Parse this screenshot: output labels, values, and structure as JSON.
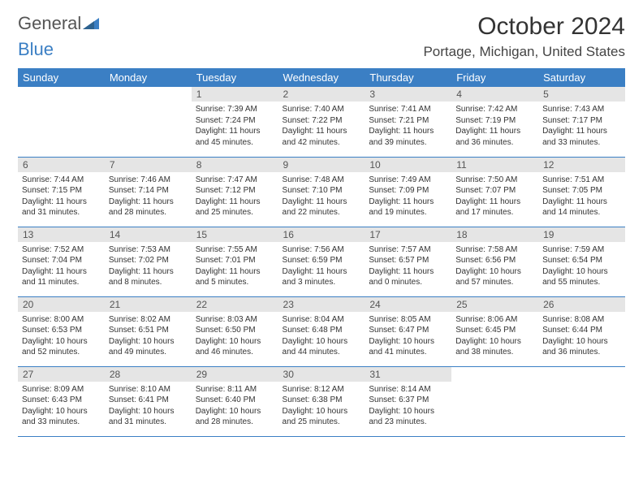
{
  "logo": {
    "text_general": "General",
    "text_blue": "Blue",
    "triangle_color": "#3b7fc4"
  },
  "title": "October 2024",
  "location": "Portage, Michigan, United States",
  "colors": {
    "header_bg": "#3b7fc4",
    "day_num_bg": "#e5e5e5",
    "border": "#3b7fc4"
  },
  "weekdays": [
    "Sunday",
    "Monday",
    "Tuesday",
    "Wednesday",
    "Thursday",
    "Friday",
    "Saturday"
  ],
  "weeks": [
    [
      null,
      null,
      {
        "num": "1",
        "sunrise": "7:39 AM",
        "sunset": "7:24 PM",
        "daylight": "11 hours and 45 minutes."
      },
      {
        "num": "2",
        "sunrise": "7:40 AM",
        "sunset": "7:22 PM",
        "daylight": "11 hours and 42 minutes."
      },
      {
        "num": "3",
        "sunrise": "7:41 AM",
        "sunset": "7:21 PM",
        "daylight": "11 hours and 39 minutes."
      },
      {
        "num": "4",
        "sunrise": "7:42 AM",
        "sunset": "7:19 PM",
        "daylight": "11 hours and 36 minutes."
      },
      {
        "num": "5",
        "sunrise": "7:43 AM",
        "sunset": "7:17 PM",
        "daylight": "11 hours and 33 minutes."
      }
    ],
    [
      {
        "num": "6",
        "sunrise": "7:44 AM",
        "sunset": "7:15 PM",
        "daylight": "11 hours and 31 minutes."
      },
      {
        "num": "7",
        "sunrise": "7:46 AM",
        "sunset": "7:14 PM",
        "daylight": "11 hours and 28 minutes."
      },
      {
        "num": "8",
        "sunrise": "7:47 AM",
        "sunset": "7:12 PM",
        "daylight": "11 hours and 25 minutes."
      },
      {
        "num": "9",
        "sunrise": "7:48 AM",
        "sunset": "7:10 PM",
        "daylight": "11 hours and 22 minutes."
      },
      {
        "num": "10",
        "sunrise": "7:49 AM",
        "sunset": "7:09 PM",
        "daylight": "11 hours and 19 minutes."
      },
      {
        "num": "11",
        "sunrise": "7:50 AM",
        "sunset": "7:07 PM",
        "daylight": "11 hours and 17 minutes."
      },
      {
        "num": "12",
        "sunrise": "7:51 AM",
        "sunset": "7:05 PM",
        "daylight": "11 hours and 14 minutes."
      }
    ],
    [
      {
        "num": "13",
        "sunrise": "7:52 AM",
        "sunset": "7:04 PM",
        "daylight": "11 hours and 11 minutes."
      },
      {
        "num": "14",
        "sunrise": "7:53 AM",
        "sunset": "7:02 PM",
        "daylight": "11 hours and 8 minutes."
      },
      {
        "num": "15",
        "sunrise": "7:55 AM",
        "sunset": "7:01 PM",
        "daylight": "11 hours and 5 minutes."
      },
      {
        "num": "16",
        "sunrise": "7:56 AM",
        "sunset": "6:59 PM",
        "daylight": "11 hours and 3 minutes."
      },
      {
        "num": "17",
        "sunrise": "7:57 AM",
        "sunset": "6:57 PM",
        "daylight": "11 hours and 0 minutes."
      },
      {
        "num": "18",
        "sunrise": "7:58 AM",
        "sunset": "6:56 PM",
        "daylight": "10 hours and 57 minutes."
      },
      {
        "num": "19",
        "sunrise": "7:59 AM",
        "sunset": "6:54 PM",
        "daylight": "10 hours and 55 minutes."
      }
    ],
    [
      {
        "num": "20",
        "sunrise": "8:00 AM",
        "sunset": "6:53 PM",
        "daylight": "10 hours and 52 minutes."
      },
      {
        "num": "21",
        "sunrise": "8:02 AM",
        "sunset": "6:51 PM",
        "daylight": "10 hours and 49 minutes."
      },
      {
        "num": "22",
        "sunrise": "8:03 AM",
        "sunset": "6:50 PM",
        "daylight": "10 hours and 46 minutes."
      },
      {
        "num": "23",
        "sunrise": "8:04 AM",
        "sunset": "6:48 PM",
        "daylight": "10 hours and 44 minutes."
      },
      {
        "num": "24",
        "sunrise": "8:05 AM",
        "sunset": "6:47 PM",
        "daylight": "10 hours and 41 minutes."
      },
      {
        "num": "25",
        "sunrise": "8:06 AM",
        "sunset": "6:45 PM",
        "daylight": "10 hours and 38 minutes."
      },
      {
        "num": "26",
        "sunrise": "8:08 AM",
        "sunset": "6:44 PM",
        "daylight": "10 hours and 36 minutes."
      }
    ],
    [
      {
        "num": "27",
        "sunrise": "8:09 AM",
        "sunset": "6:43 PM",
        "daylight": "10 hours and 33 minutes."
      },
      {
        "num": "28",
        "sunrise": "8:10 AM",
        "sunset": "6:41 PM",
        "daylight": "10 hours and 31 minutes."
      },
      {
        "num": "29",
        "sunrise": "8:11 AM",
        "sunset": "6:40 PM",
        "daylight": "10 hours and 28 minutes."
      },
      {
        "num": "30",
        "sunrise": "8:12 AM",
        "sunset": "6:38 PM",
        "daylight": "10 hours and 25 minutes."
      },
      {
        "num": "31",
        "sunrise": "8:14 AM",
        "sunset": "6:37 PM",
        "daylight": "10 hours and 23 minutes."
      },
      null,
      null
    ]
  ]
}
